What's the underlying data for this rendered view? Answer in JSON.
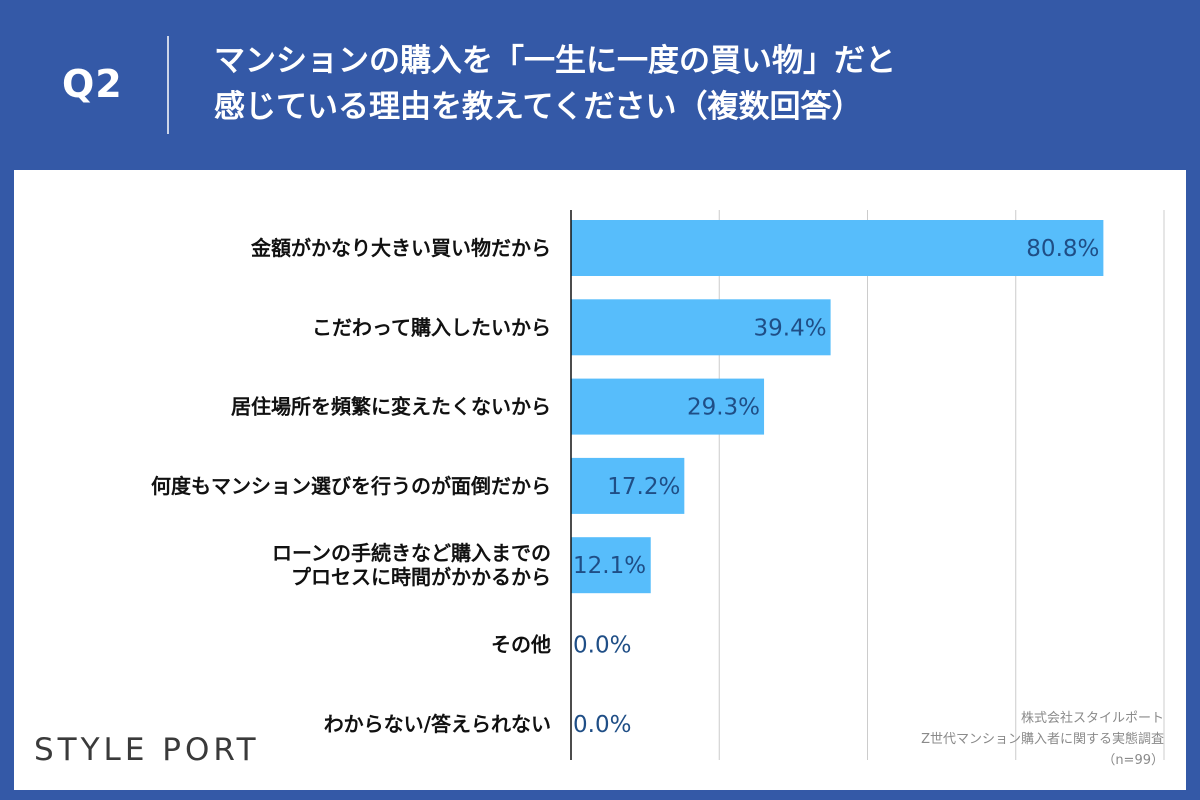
{
  "header": {
    "question": "Q2",
    "title_line1": "マンションの購入を「一生に一度の買い物」だと",
    "title_line2": "感じている理由を教えてください（複数回答）"
  },
  "brand": {
    "logo_text": "STYLE PORT"
  },
  "source": {
    "company": "株式会社スタイルポート",
    "survey": "Z世代マンション購入者に関する実態調査",
    "sample": "（n=99）"
  },
  "colors": {
    "bar": "#57bdfb",
    "header_bg": "#3459a7",
    "value_text": "#1f4e86",
    "grid": "#cccccc"
  },
  "chart_data": {
    "type": "bar",
    "orientation": "horizontal",
    "categories": [
      [
        "金額がかなり大きい買い物だから"
      ],
      [
        "こだわって購入したいから"
      ],
      [
        "居住場所を頻繁に変えたくないから"
      ],
      [
        "何度もマンション選びを行うのが面倒だから"
      ],
      [
        "ローンの手続きなど購入までの",
        "プロセスに時間がかかるから"
      ],
      [
        "その他"
      ],
      [
        "わからない/答えられない"
      ]
    ],
    "values": [
      80.8,
      39.4,
      29.3,
      17.2,
      12.1,
      0.0,
      0.0
    ],
    "value_labels": [
      "80.8%",
      "39.4%",
      "29.3%",
      "17.2%",
      "12.1%",
      "0.0%",
      "0.0%"
    ],
    "xlim": [
      0,
      90
    ],
    "grid_step": 22.5,
    "grid": true
  }
}
